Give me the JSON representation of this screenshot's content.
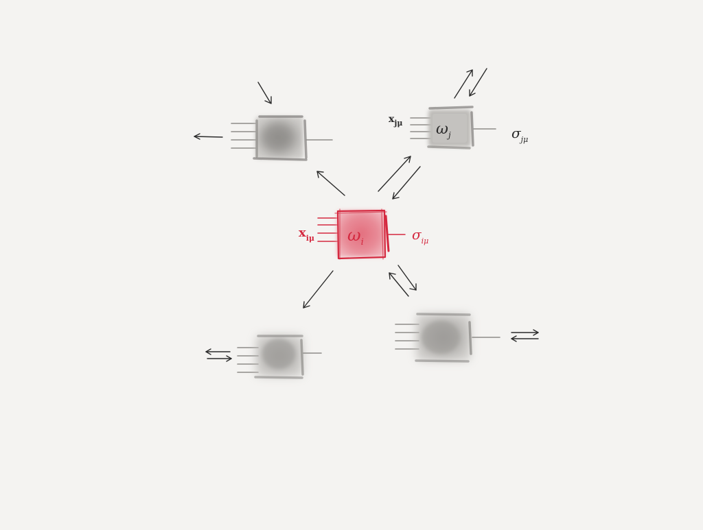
{
  "diagram": {
    "center_node": {
      "label": "ω",
      "subscript": "i",
      "input_symbol": "x",
      "input_subscript": "iμ",
      "output_symbol": "σ",
      "output_subscript": "iμ",
      "color": "#d4283f"
    },
    "node_j": {
      "label": "ω",
      "subscript": "j",
      "input_symbol": "x",
      "input_subscript": "jμ",
      "output_symbol": "σ",
      "output_subscript": "jμ"
    },
    "colors": {
      "background": "#f4f3f1",
      "ink": "#2a2a2a",
      "highlight": "#d4283f",
      "neighbor_fill": "#a9a7a4"
    }
  }
}
